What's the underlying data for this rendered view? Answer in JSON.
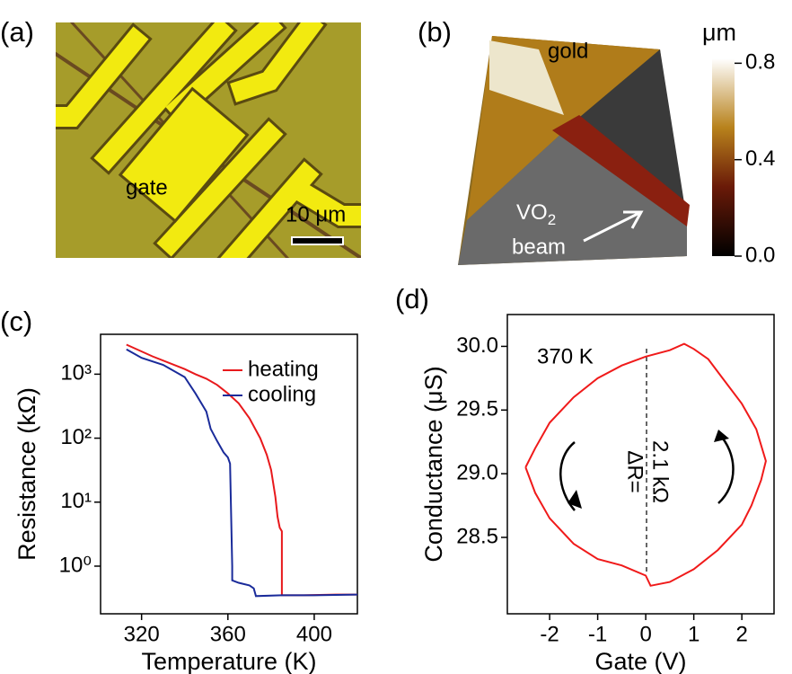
{
  "panels": [
    {
      "label": "(a)",
      "annotations": [
        "gate",
        "10 μm"
      ]
    },
    {
      "label": "(b)",
      "annotations": [
        "gold",
        "VO",
        "2",
        "beam"
      ],
      "colorbar": {
        "label": "μm",
        "lim": [
          0,
          0.82
        ],
        "ticks": [
          {
            "value": 0,
            "label": "0.0"
          },
          0.4,
          0.8
        ]
      }
    }
  ],
  "chart_data": [
    {
      "type": "line",
      "label": "(c)",
      "xlabel": "Temperature (K)",
      "ylabel": "Resistance (kΩ)",
      "log_y": true,
      "legend": "upper right",
      "xlim": [
        301,
        420
      ],
      "xticks": [
        320,
        360,
        400
      ],
      "ylim": [
        0.18,
        4200
      ],
      "yticks": [
        {
          "value": 1,
          "label": "10⁰"
        },
        {
          "value": 10,
          "label": "10¹"
        },
        {
          "value": 100,
          "label": "10²"
        },
        {
          "value": 1000,
          "label": "10³"
        }
      ],
      "series": [
        {
          "name": "heating",
          "color": "#e8191c",
          "x": [
            313,
            325,
            340,
            345,
            350,
            355,
            360,
            365,
            370,
            375,
            378,
            380,
            382,
            383,
            384,
            385,
            385,
            395,
            410,
            420
          ],
          "values": [
            2900,
            1900,
            1200,
            1000,
            850,
            680,
            500,
            350,
            205,
            100,
            55,
            32,
            12,
            5.9,
            4,
            3.5,
            0.35,
            0.35,
            0.36,
            0.36
          ]
        },
        {
          "name": "cooling",
          "color": "#1a2b9a",
          "x": [
            313,
            320,
            330,
            340,
            345,
            350,
            352,
            355,
            358,
            360,
            361,
            362,
            362,
            365,
            370,
            372,
            373,
            385,
            400,
            420
          ],
          "values": [
            2450,
            1800,
            1400,
            900,
            500,
            260,
            140,
            90,
            60,
            50,
            40,
            1.0,
            0.6,
            0.55,
            0.5,
            0.45,
            0.34,
            0.35,
            0.35,
            0.36
          ]
        }
      ]
    },
    {
      "type": "line",
      "label": "(d)",
      "xlabel": "Gate (V)",
      "ylabel": "Conductance (μS)",
      "annotations": [
        "370 K",
        "ΔR=",
        "2.1 kΩ"
      ],
      "xlim": [
        -2.88,
        2.67
      ],
      "xticks": [
        -2,
        -1,
        0,
        1,
        2
      ],
      "ylim": [
        27.9,
        30.25
      ],
      "yticks": [
        28.5,
        {
          "value": 29,
          "label": "29.0"
        },
        29.5,
        {
          "value": 30,
          "label": "30.0"
        }
      ],
      "series": [
        {
          "name": "370 K",
          "color": "#f01a1a",
          "x": [
            -2.5,
            -2.3,
            -2,
            -1.5,
            -1,
            -0.5,
            0,
            0.5,
            0.8,
            1,
            1.3,
            1.6,
            2,
            2.3,
            2.5,
            2.4,
            2.2,
            2,
            1.5,
            1,
            0.5,
            0.1,
            0,
            -0.5,
            -1,
            -1.5,
            -2,
            -2.3,
            -2.5
          ],
          "values": [
            29.05,
            29.2,
            29.4,
            29.6,
            29.75,
            29.85,
            29.92,
            29.97,
            30.02,
            29.98,
            29.9,
            29.75,
            29.55,
            29.35,
            29.1,
            28.95,
            28.75,
            28.6,
            28.4,
            28.25,
            28.15,
            28.12,
            28.2,
            28.28,
            28.33,
            28.45,
            28.65,
            28.85,
            29.05
          ]
        }
      ]
    }
  ]
}
